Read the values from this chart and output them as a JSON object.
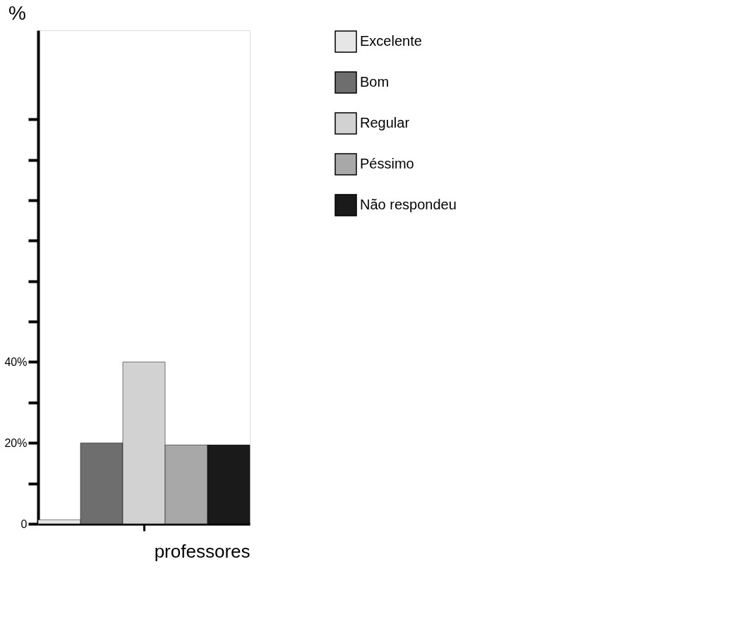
{
  "chart_data": {
    "type": "bar",
    "ylabel": "%",
    "xlabel": "professores",
    "categories": [
      null
    ],
    "series": [
      {
        "name": "Excelente",
        "color": "#e6e6e6",
        "values": [
          1
        ]
      },
      {
        "name": "Bom",
        "color": "#6e6e6e",
        "values": [
          20
        ]
      },
      {
        "name": "Regular",
        "color": "#d2d2d2",
        "values": [
          40
        ]
      },
      {
        "name": "Péssimo",
        "color": "#a8a8a8",
        "values": [
          19.5
        ]
      },
      {
        "name": "Não respondeu",
        "color": "#1a1a1a",
        "values": [
          19.5
        ]
      }
    ],
    "ylim": [
      0,
      122
    ],
    "yticks": [
      {
        "value": 0,
        "label": "0"
      },
      {
        "value": 10,
        "label": null
      },
      {
        "value": 20,
        "label": "20%"
      },
      {
        "value": 30,
        "label": null
      },
      {
        "value": 40,
        "label": "40%"
      },
      {
        "value": 50,
        "label": null
      },
      {
        "value": 60,
        "label": null
      },
      {
        "value": 70,
        "label": null
      },
      {
        "value": 80,
        "label": null
      },
      {
        "value": 90,
        "label": null
      },
      {
        "value": 100,
        "label": null
      }
    ],
    "grid": false,
    "legend": "right"
  }
}
